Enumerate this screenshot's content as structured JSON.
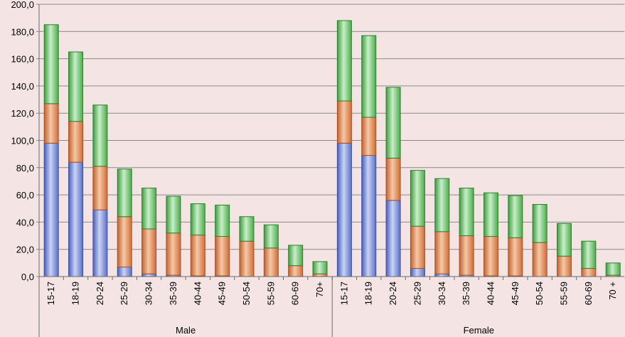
{
  "colors": {
    "background": "#f5e4e4",
    "blue": "#6f86d3",
    "orange": "#e08a56",
    "green": "#6fc06f",
    "grid": "#8a8a8a"
  },
  "chart_data": {
    "type": "bar",
    "stacked": true,
    "ylim": [
      0,
      200
    ],
    "y_ticks": [
      "0,0",
      "20,0",
      "40,0",
      "60,0",
      "80,0",
      "100,0",
      "120,0",
      "140,0",
      "160,0",
      "180,0",
      "200,0"
    ],
    "grid": true,
    "legend": "none",
    "groups": [
      {
        "label": "Male",
        "categories": [
          "15-17",
          "18-19",
          "20-24",
          "25-29",
          "30-34",
          "35-39",
          "40-44",
          "45-49",
          "50-54",
          "55-59",
          "60-69",
          "70+"
        ],
        "series": [
          {
            "color_key": "blue",
            "values": [
              98,
              84,
              49,
              7,
              2,
              1,
              0.5,
              0.5,
              0,
              0,
              0,
              0
            ]
          },
          {
            "color_key": "orange",
            "values": [
              29,
              30,
              32,
              37,
              33,
              31,
              30,
              29,
              26,
              21,
              8,
              2
            ]
          },
          {
            "color_key": "green",
            "values": [
              58,
              51,
              45,
              35,
              30,
              27,
              23,
              23,
              18,
              17,
              15,
              9
            ]
          }
        ]
      },
      {
        "label": "Female",
        "categories": [
          "15-17",
          "18-19",
          "20-24",
          "25-29",
          "30-34",
          "35-39",
          "40-44",
          "45-49",
          "50-54",
          "55-59",
          "60-69",
          "70 +"
        ],
        "series": [
          {
            "color_key": "blue",
            "values": [
              98,
              89,
              56,
              6,
              2,
              1,
              0.5,
              0.5,
              0,
              0,
              0,
              0
            ]
          },
          {
            "color_key": "orange",
            "values": [
              31,
              28,
              31,
              31,
              31,
              29,
              29,
              28,
              25,
              15,
              6,
              1
            ]
          },
          {
            "color_key": "green",
            "values": [
              59,
              60,
              52,
              41,
              39,
              35,
              32,
              31,
              28,
              24,
              20,
              9
            ]
          }
        ]
      }
    ]
  }
}
